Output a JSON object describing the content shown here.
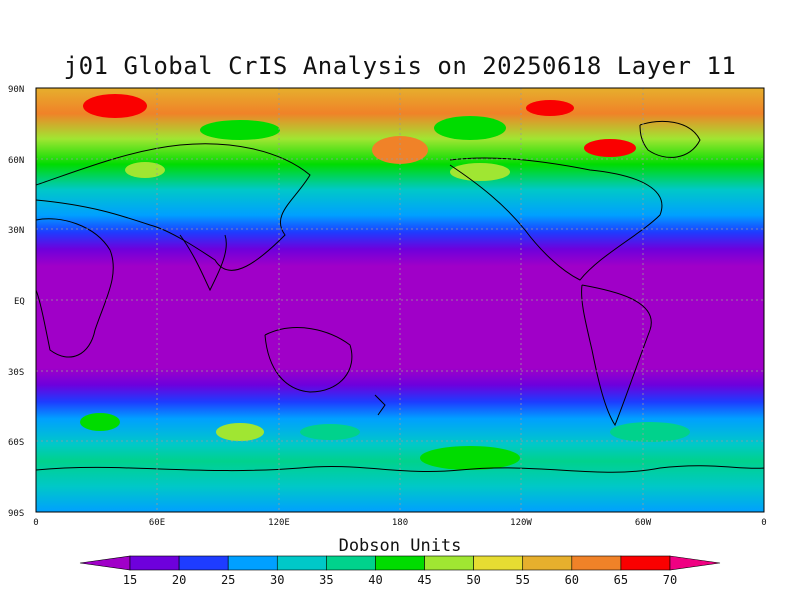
{
  "title": "j01 Global CrIS Analysis on 20250618 Layer 11",
  "map": {
    "projection": "cylindrical-equidistant",
    "central_longitude": 180,
    "grid": "dashed",
    "coastlines": true,
    "lat_labels": [
      "90N",
      "60N",
      "30N",
      "EQ",
      "30S",
      "60S",
      "90S"
    ],
    "lon_labels": [
      "0",
      "60E",
      "120E",
      "180",
      "120W",
      "60W",
      "0"
    ],
    "zonal_bands": [
      {
        "latitude_range": [
          60,
          90
        ],
        "level": "45-70"
      },
      {
        "latitude_range": [
          40,
          60
        ],
        "level": "25-45"
      },
      {
        "latitude_range": [
          30,
          40
        ],
        "level": "15-25"
      },
      {
        "latitude_range": [
          -30,
          30
        ],
        "level": "<15"
      },
      {
        "latitude_range": [
          -45,
          -30
        ],
        "level": "15-25"
      },
      {
        "latitude_range": [
          -60,
          -45
        ],
        "level": "25-45"
      },
      {
        "latitude_range": [
          -90,
          -60
        ],
        "level": "30-40"
      }
    ]
  },
  "colorbar": {
    "title": "Dobson Units",
    "levels": [
      "15",
      "20",
      "25",
      "30",
      "35",
      "40",
      "45",
      "50",
      "55",
      "60",
      "65",
      "70"
    ],
    "colors": [
      "#a000c8",
      "#6e00dc",
      "#1e3cff",
      "#00a0ff",
      "#00c8c8",
      "#00d28c",
      "#00dc00",
      "#a0e632",
      "#e6dc32",
      "#e6af2d",
      "#f08228",
      "#fa0000",
      "#f00082"
    ]
  }
}
